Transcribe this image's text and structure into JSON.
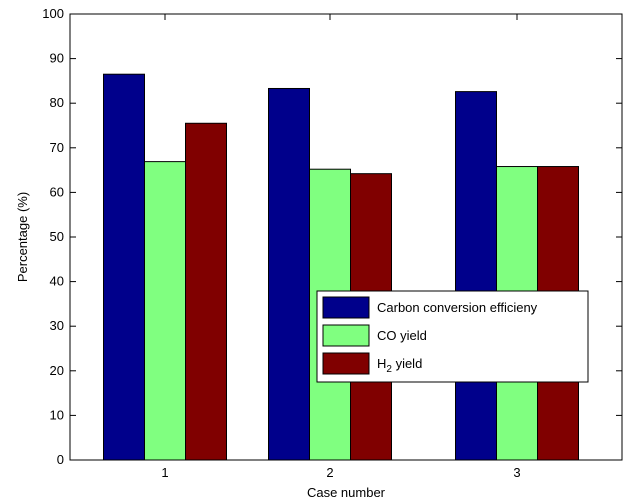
{
  "chart_data": {
    "type": "bar",
    "categories": [
      "1",
      "2",
      "3"
    ],
    "series": [
      {
        "name": "Carbon conversion efficieny",
        "label_main": "Carbon conversion efficieny",
        "label_sub": "",
        "label_tail": "",
        "color": "#00008b",
        "values": [
          86.5,
          83.3,
          82.6
        ]
      },
      {
        "name": "CO yield",
        "label_main": "CO yield",
        "label_sub": "",
        "label_tail": "",
        "color": "#80ff80",
        "values": [
          66.9,
          65.2,
          65.8
        ]
      },
      {
        "name": "H2 yield",
        "label_main": "H",
        "label_sub": "2",
        "label_tail": " yield",
        "color": "#800000",
        "values": [
          75.5,
          64.2,
          65.8
        ]
      }
    ],
    "ylim": [
      0,
      100
    ],
    "yticks": [
      0,
      10,
      20,
      30,
      40,
      50,
      60,
      70,
      80,
      90,
      100
    ],
    "xlabel": "Case number",
    "ylabel": "Percentage (%)",
    "grid": false,
    "legend_position": "lower-right"
  }
}
